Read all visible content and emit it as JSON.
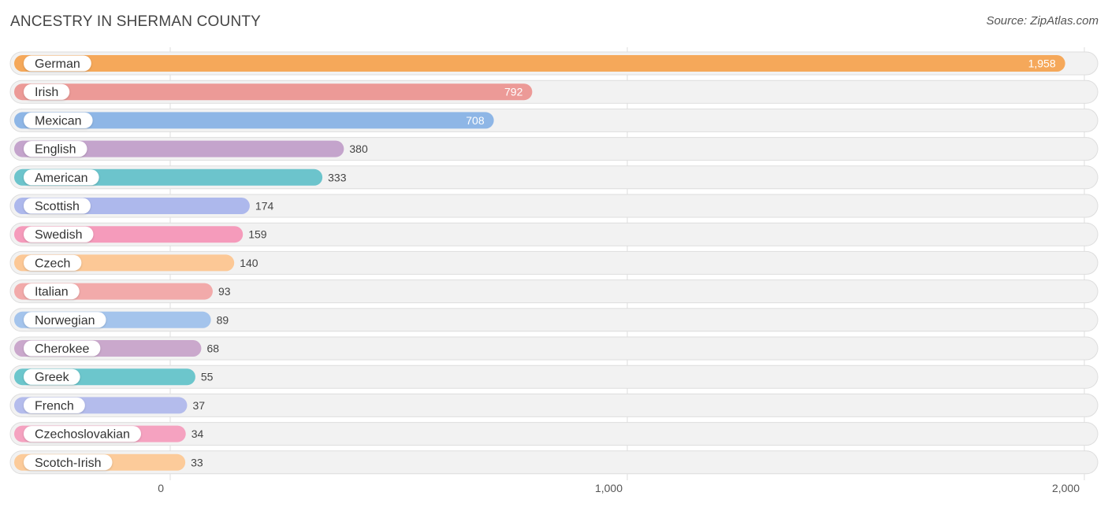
{
  "header": {
    "title": "ANCESTRY IN SHERMAN COUNTY",
    "source": "Source: ZipAtlas.com"
  },
  "chart_data": {
    "type": "bar",
    "orientation": "horizontal",
    "title": "ANCESTRY IN SHERMAN COUNTY",
    "xlabel": "",
    "ylabel": "",
    "xlim": [
      0,
      2000
    ],
    "grid": true,
    "ticks": [
      {
        "value": 0,
        "label": "0"
      },
      {
        "value": 1000,
        "label": "1,000"
      },
      {
        "value": 2000,
        "label": "2,000"
      }
    ],
    "categories": [
      "German",
      "Irish",
      "Mexican",
      "English",
      "American",
      "Scottish",
      "Swedish",
      "Czech",
      "Italian",
      "Norwegian",
      "Cherokee",
      "Greek",
      "French",
      "Czechoslovakian",
      "Scotch-Irish"
    ],
    "values": [
      1958,
      792,
      708,
      380,
      333,
      174,
      159,
      140,
      93,
      89,
      68,
      55,
      37,
      34,
      33
    ],
    "value_labels": [
      "1,958",
      "792",
      "708",
      "380",
      "333",
      "174",
      "159",
      "140",
      "93",
      "89",
      "68",
      "55",
      "37",
      "34",
      "33"
    ],
    "colors": [
      "#f5a85a",
      "#ec9a97",
      "#8eb6e6",
      "#c4a4cc",
      "#6cc4cc",
      "#adb8ec",
      "#f59bbb",
      "#fcc896",
      "#f2aaaa",
      "#a4c4ec",
      "#caa8cc",
      "#6cc6cc",
      "#b4bcec",
      "#f5a2c0",
      "#fccb9a"
    ]
  }
}
